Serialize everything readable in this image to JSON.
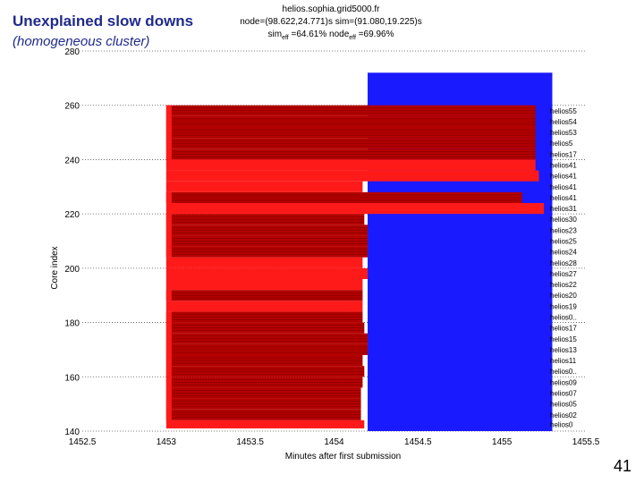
{
  "slide": {
    "title": "Unexplained slow downs",
    "subtitle": "(homogeneous cluster)",
    "page_number": "41"
  },
  "chart_header": {
    "line1": "helios.sophia.grid5000.fr",
    "line2": "node=(98.622,24.771)s sim=(91.080,19.225)s",
    "line3_prefix": "sim",
    "line3_sub1": "eff",
    "line3_mid": " =64.61% node",
    "line3_sub2": "eff",
    "line3_suffix": " =69.96%"
  },
  "colors": {
    "bright_red": "#ff1a1a",
    "dark_red": "#b30000",
    "blue": "#1a1aff",
    "title": "#1f2a8c"
  },
  "chart_data": {
    "type": "bar",
    "orientation": "horizontal",
    "xlabel": "Minutes after first submission",
    "ylabel": "Core index",
    "xlim": [
      1452.5,
      1455.5
    ],
    "ylim": [
      140,
      280
    ],
    "xticks": [
      "1452.5",
      "1453",
      "1453.5",
      "1454",
      "1454.5",
      "1455",
      "1455.5"
    ],
    "yticks": [
      "140",
      "160",
      "180",
      "200",
      "220",
      "240",
      "260",
      "280"
    ],
    "grid": "y-dotted",
    "bar_start": 1453.0,
    "blue_region": {
      "from_core": 140,
      "to_core": 272,
      "x_start": 1454.2,
      "x_end": 1455.3
    },
    "series": [
      {
        "name": "",
        "color": "bright_red"
      },
      {
        "name": "",
        "color": "dark_red"
      },
      {
        "name": "",
        "color": "blue"
      }
    ],
    "rows": [
      {
        "core_from": 141,
        "core_to": 144,
        "end": 1454.18,
        "color": "bright_red",
        "node": "helios0"
      },
      {
        "core_from": 144,
        "core_to": 148,
        "end": 1454.16,
        "color": "dark_red",
        "node": "helios02"
      },
      {
        "core_from": 148,
        "core_to": 152,
        "end": 1454.16,
        "color": "dark_red",
        "node": "helios05"
      },
      {
        "core_from": 152,
        "core_to": 156,
        "end": 1454.16,
        "color": "dark_red",
        "node": "helios07"
      },
      {
        "core_from": 156,
        "core_to": 160,
        "end": 1454.17,
        "color": "dark_red",
        "node": "helios09"
      },
      {
        "core_from": 160,
        "core_to": 164,
        "end": 1454.18,
        "color": "dark_red",
        "node": "helios0.."
      },
      {
        "core_from": 164,
        "core_to": 168,
        "end": 1454.17,
        "color": "dark_red",
        "node": "helios11"
      },
      {
        "core_from": 168,
        "core_to": 172,
        "end": 1454.2,
        "color": "dark_red",
        "node": "helios13"
      },
      {
        "core_from": 172,
        "core_to": 176,
        "end": 1454.2,
        "color": "dark_red",
        "node": "helios15"
      },
      {
        "core_from": 176,
        "core_to": 180,
        "end": 1454.18,
        "color": "dark_red",
        "node": "helios17"
      },
      {
        "core_from": 180,
        "core_to": 184,
        "end": 1454.17,
        "color": "dark_red",
        "node": "helios0.."
      },
      {
        "core_from": 184,
        "core_to": 188,
        "end": 1454.17,
        "color": "bright_red",
        "node": "helios19"
      },
      {
        "core_from": 188,
        "core_to": 192,
        "end": 1454.17,
        "color": "dark_red",
        "node": "helios20"
      },
      {
        "core_from": 192,
        "core_to": 196,
        "end": 1454.17,
        "color": "bright_red",
        "node": "helios22"
      },
      {
        "core_from": 196,
        "core_to": 200,
        "end": 1454.2,
        "color": "bright_red",
        "node": "helios27"
      },
      {
        "core_from": 200,
        "core_to": 204,
        "end": 1454.17,
        "color": "bright_red",
        "node": "helios28"
      },
      {
        "core_from": 204,
        "core_to": 208,
        "end": 1454.2,
        "color": "dark_red",
        "node": "helios24"
      },
      {
        "core_from": 208,
        "core_to": 212,
        "end": 1454.2,
        "color": "dark_red",
        "node": "helios25"
      },
      {
        "core_from": 212,
        "core_to": 216,
        "end": 1454.2,
        "color": "dark_red",
        "node": "helios23"
      },
      {
        "core_from": 216,
        "core_to": 220,
        "end": 1454.18,
        "color": "dark_red",
        "node": "helios30"
      },
      {
        "core_from": 220,
        "core_to": 224,
        "end": 1455.25,
        "color": "bright_red",
        "node": "helios31"
      },
      {
        "core_from": 224,
        "core_to": 228,
        "end": 1455.12,
        "color": "dark_red",
        "node": "helios41"
      },
      {
        "core_from": 228,
        "core_to": 232,
        "end": 1454.17,
        "color": "bright_red",
        "node": "helios41"
      },
      {
        "core_from": 232,
        "core_to": 236,
        "end": 1455.22,
        "color": "bright_red",
        "node": "helios41"
      },
      {
        "core_from": 236,
        "core_to": 240,
        "end": 1455.2,
        "color": "bright_red",
        "node": "helios41"
      },
      {
        "core_from": 240,
        "core_to": 244,
        "end": 1455.2,
        "color": "dark_red",
        "node": "helios17"
      },
      {
        "core_from": 244,
        "core_to": 248,
        "end": 1455.2,
        "color": "dark_red",
        "node": "helios5"
      },
      {
        "core_from": 248,
        "core_to": 252,
        "end": 1455.2,
        "color": "dark_red",
        "node": "helios53"
      },
      {
        "core_from": 252,
        "core_to": 256,
        "end": 1455.2,
        "color": "dark_red",
        "node": "helios54"
      },
      {
        "core_from": 256,
        "core_to": 260,
        "end": 1455.2,
        "color": "dark_red",
        "node": "helios55"
      }
    ]
  }
}
